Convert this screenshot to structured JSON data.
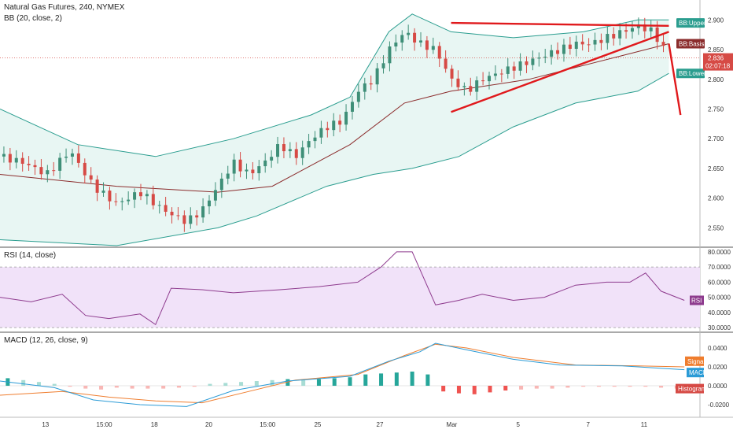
{
  "header": {
    "symbol_title": "Natural Gas Futures, 240, NYMEX",
    "bb_title": "BB (20, close, 2)"
  },
  "rsi_panel": {
    "title": "RSI (14, close)"
  },
  "macd_panel": {
    "title": "MACD (12, 26, close, 9)"
  },
  "colors": {
    "up": "#3f8f78",
    "down": "#d64a45",
    "upper": "#2a9d8f",
    "basis": "#8b2c2c",
    "band_fill": "#e8f6f3",
    "rsi_line": "#8e3b8e",
    "rsi_band": "#f1e2f9",
    "macd": "#2b9bd6",
    "signal": "#ef7d2e",
    "trend": "#e0191c"
  },
  "price_tags": {
    "upper": "BB:Upper",
    "basis": "BB:Basis",
    "last": "2.836",
    "countdown": "02:07:18",
    "lower": "BB:Lower"
  },
  "rsi_tag": "RSI",
  "macd_tags": {
    "signal": "Signal",
    "macd": "MACD",
    "histogram": "Histogram"
  },
  "chart_data": {
    "type": "candlestick",
    "x_ticks": [
      "13",
      "15:00",
      "18",
      "20",
      "15:00",
      "25",
      "27",
      "Mar",
      "5",
      "7",
      "11"
    ],
    "price_axis": {
      "ticks": [
        2.55,
        2.6,
        2.65,
        2.7,
        2.75,
        2.8,
        2.85,
        2.9
      ],
      "tick_labels": [
        "2.550",
        "2.600",
        "2.650",
        "2.700",
        "2.750",
        "2.800",
        "2.850",
        "2.900"
      ],
      "range": [
        2.52,
        2.915
      ]
    },
    "rsi_axis": {
      "ticks": [
        30,
        40,
        50,
        60,
        70,
        80
      ],
      "tick_labels": [
        "30.0000",
        "40.0000",
        "50.0000",
        "60.0000",
        "70.0000",
        "80.0000"
      ],
      "range": [
        28,
        82
      ],
      "band": [
        30,
        70
      ]
    },
    "macd_axis": {
      "ticks": [
        -0.02,
        0,
        0.02,
        0.04
      ],
      "tick_labels": [
        "-0.0200",
        "0.0000",
        "0.0200",
        "0.0400"
      ],
      "range": [
        -0.03,
        0.055
      ]
    },
    "close_path": [
      [
        0,
        2.67
      ],
      [
        6,
        2.66
      ],
      [
        12,
        2.64
      ],
      [
        18,
        2.68
      ],
      [
        24,
        2.62
      ],
      [
        30,
        2.59
      ],
      [
        36,
        2.61
      ],
      [
        42,
        2.58
      ],
      [
        48,
        2.56
      ],
      [
        52,
        2.58
      ],
      [
        56,
        2.62
      ],
      [
        60,
        2.66
      ],
      [
        64,
        2.64
      ],
      [
        68,
        2.66
      ],
      [
        72,
        2.69
      ],
      [
        76,
        2.67
      ],
      [
        80,
        2.7
      ],
      [
        84,
        2.72
      ],
      [
        88,
        2.73
      ],
      [
        92,
        2.78
      ],
      [
        96,
        2.8
      ],
      [
        100,
        2.85
      ],
      [
        104,
        2.88
      ],
      [
        108,
        2.86
      ],
      [
        112,
        2.85
      ],
      [
        116,
        2.8
      ],
      [
        120,
        2.78
      ],
      [
        124,
        2.8
      ],
      [
        128,
        2.81
      ],
      [
        132,
        2.82
      ],
      [
        136,
        2.83
      ],
      [
        140,
        2.84
      ],
      [
        144,
        2.85
      ],
      [
        148,
        2.86
      ],
      [
        152,
        2.86
      ],
      [
        156,
        2.87
      ],
      [
        160,
        2.88
      ],
      [
        164,
        2.89
      ],
      [
        168,
        2.88
      ],
      [
        172,
        2.836
      ]
    ],
    "bb_upper_path": [
      [
        0,
        2.75
      ],
      [
        20,
        2.69
      ],
      [
        40,
        2.67
      ],
      [
        60,
        2.7
      ],
      [
        80,
        2.74
      ],
      [
        90,
        2.77
      ],
      [
        100,
        2.88
      ],
      [
        106,
        2.91
      ],
      [
        116,
        2.88
      ],
      [
        132,
        2.87
      ],
      [
        150,
        2.88
      ],
      [
        164,
        2.9
      ],
      [
        172,
        2.9
      ]
    ],
    "bb_basis_path": [
      [
        0,
        2.64
      ],
      [
        30,
        2.62
      ],
      [
        56,
        2.61
      ],
      [
        70,
        2.62
      ],
      [
        90,
        2.69
      ],
      [
        104,
        2.76
      ],
      [
        116,
        2.78
      ],
      [
        136,
        2.8
      ],
      [
        160,
        2.84
      ],
      [
        172,
        2.86
      ]
    ],
    "bb_lower_path": [
      [
        0,
        2.53
      ],
      [
        30,
        2.52
      ],
      [
        56,
        2.55
      ],
      [
        66,
        2.57
      ],
      [
        84,
        2.62
      ],
      [
        96,
        2.64
      ],
      [
        106,
        2.65
      ],
      [
        118,
        2.67
      ],
      [
        132,
        2.72
      ],
      [
        148,
        2.76
      ],
      [
        164,
        2.78
      ],
      [
        172,
        2.81
      ]
    ],
    "trend_lines": [
      [
        [
          116,
          2.895
        ],
        [
          172,
          2.89
        ]
      ],
      [
        [
          116,
          2.745
        ],
        [
          172,
          2.88
        ]
      ],
      [
        [
          172,
          2.86
        ],
        [
          175,
          2.74
        ]
      ]
    ],
    "rsi_path": [
      [
        0,
        50
      ],
      [
        8,
        47
      ],
      [
        16,
        52
      ],
      [
        22,
        38
      ],
      [
        28,
        36
      ],
      [
        36,
        39
      ],
      [
        40,
        32
      ],
      [
        44,
        56
      ],
      [
        52,
        55
      ],
      [
        60,
        53
      ],
      [
        72,
        55
      ],
      [
        82,
        57
      ],
      [
        92,
        60
      ],
      [
        98,
        70
      ],
      [
        102,
        80
      ],
      [
        106,
        80
      ],
      [
        112,
        45
      ],
      [
        118,
        48
      ],
      [
        124,
        52
      ],
      [
        132,
        48
      ],
      [
        140,
        50
      ],
      [
        148,
        58
      ],
      [
        156,
        60
      ],
      [
        162,
        60
      ],
      [
        166,
        66
      ],
      [
        170,
        54
      ],
      [
        176,
        48
      ]
    ],
    "macd_path": [
      [
        0,
        0.005
      ],
      [
        14,
        -0.002
      ],
      [
        24,
        -0.015
      ],
      [
        36,
        -0.02
      ],
      [
        48,
        -0.022
      ],
      [
        60,
        -0.005
      ],
      [
        74,
        0.005
      ],
      [
        90,
        0.01
      ],
      [
        100,
        0.026
      ],
      [
        108,
        0.036
      ],
      [
        112,
        0.045
      ],
      [
        120,
        0.038
      ],
      [
        132,
        0.028
      ],
      [
        144,
        0.022
      ],
      [
        160,
        0.021
      ],
      [
        176,
        0.017
      ]
    ],
    "signal_path": [
      [
        0,
        -0.01
      ],
      [
        16,
        -0.006
      ],
      [
        28,
        -0.012
      ],
      [
        40,
        -0.016
      ],
      [
        52,
        -0.018
      ],
      [
        64,
        -0.006
      ],
      [
        76,
        0.006
      ],
      [
        92,
        0.012
      ],
      [
        104,
        0.032
      ],
      [
        112,
        0.044
      ],
      [
        120,
        0.04
      ],
      [
        132,
        0.03
      ],
      [
        148,
        0.022
      ],
      [
        164,
        0.021
      ],
      [
        176,
        0.02
      ]
    ],
    "macd_hist": [
      [
        2,
        0.008
      ],
      [
        6,
        0.006
      ],
      [
        10,
        0.004
      ],
      [
        14,
        0.002
      ],
      [
        18,
        -0.001
      ],
      [
        22,
        -0.003
      ],
      [
        26,
        -0.004
      ],
      [
        30,
        -0.002
      ],
      [
        34,
        -0.003
      ],
      [
        38,
        -0.003
      ],
      [
        42,
        -0.003
      ],
      [
        46,
        -0.002
      ],
      [
        50,
        -0.001
      ],
      [
        54,
        0.002
      ],
      [
        58,
        0.003
      ],
      [
        62,
        0.004
      ],
      [
        66,
        0.005
      ],
      [
        70,
        0.006
      ],
      [
        74,
        0.007
      ],
      [
        78,
        0.006
      ],
      [
        82,
        0.007
      ],
      [
        86,
        0.008
      ],
      [
        90,
        0.009
      ],
      [
        94,
        0.012
      ],
      [
        98,
        0.013
      ],
      [
        102,
        0.014
      ],
      [
        106,
        0.015
      ],
      [
        110,
        0.012
      ],
      [
        114,
        -0.006
      ],
      [
        118,
        -0.008
      ],
      [
        122,
        -0.009
      ],
      [
        126,
        -0.007
      ],
      [
        130,
        -0.005
      ],
      [
        134,
        -0.004
      ],
      [
        138,
        -0.003
      ],
      [
        142,
        -0.003
      ],
      [
        146,
        -0.002
      ],
      [
        150,
        -0.001
      ],
      [
        154,
        -0.001
      ],
      [
        158,
        -0.001
      ],
      [
        162,
        -0.001
      ],
      [
        166,
        -0.001
      ],
      [
        170,
        -0.002
      ],
      [
        174,
        -0.003
      ]
    ]
  }
}
